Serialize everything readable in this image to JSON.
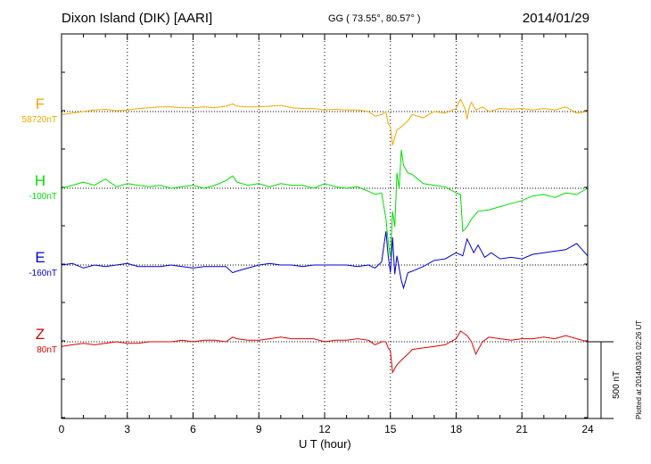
{
  "header": {
    "station": "Dixon Island (DIK)  [AARI]",
    "coords": "GG ( 73.55°,  80.57° )",
    "date": "2014/01/29"
  },
  "plotted_note": "Plotted at 2014/03/01 02:26 UT",
  "scale_bar_label": "500 nT",
  "chart_data": {
    "type": "line",
    "xlabel": "U T (hour)",
    "xlim": [
      0,
      24
    ],
    "xticks": [
      0,
      3,
      6,
      9,
      12,
      15,
      18,
      21,
      24
    ],
    "grid": true,
    "scale_bar_nT": 500,
    "series": [
      {
        "name": "F",
        "baseline_label": "58720nT",
        "color": "#f0a800",
        "x": [
          0,
          0.5,
          1,
          1.5,
          2,
          2.5,
          3,
          3.5,
          4,
          4.5,
          5,
          5.5,
          6,
          6.5,
          7,
          7.5,
          7.8,
          8,
          8.5,
          9,
          9.5,
          10,
          10.5,
          11,
          11.5,
          12,
          12.5,
          13,
          13.5,
          14,
          14.3,
          14.6,
          14.8,
          14.9,
          15.0,
          15.1,
          15.3,
          15.5,
          15.8,
          16,
          16.5,
          17,
          17.5,
          18,
          18.2,
          18.3,
          18.4,
          18.5,
          18.6,
          18.7,
          18.9,
          19.2,
          19.5,
          20,
          20.5,
          21,
          21.5,
          22,
          22.5,
          23,
          23.5,
          24
        ],
        "values": [
          -20,
          -10,
          0,
          10,
          15,
          5,
          10,
          20,
          25,
          30,
          30,
          25,
          25,
          30,
          25,
          35,
          50,
          35,
          30,
          30,
          35,
          40,
          25,
          20,
          20,
          10,
          15,
          10,
          10,
          0,
          -30,
          -20,
          0,
          -80,
          -100,
          -220,
          -120,
          -100,
          -60,
          -20,
          -40,
          0,
          -10,
          20,
          80,
          50,
          20,
          -50,
          30,
          60,
          10,
          30,
          0,
          20,
          15,
          20,
          10,
          20,
          10,
          30,
          -10,
          0
        ]
      },
      {
        "name": "H",
        "baseline_label": "-100nT",
        "color": "#00dd00",
        "x": [
          0,
          0.5,
          1,
          1.5,
          2,
          2.5,
          3,
          3.5,
          4,
          4.5,
          5,
          5.5,
          6,
          6.5,
          7,
          7.5,
          7.8,
          8,
          8.5,
          9,
          9.5,
          10,
          10.5,
          11,
          11.5,
          12,
          12.5,
          13,
          13.5,
          14,
          14.3,
          14.6,
          14.8,
          14.9,
          15.0,
          15.1,
          15.2,
          15.3,
          15.4,
          15.5,
          15.6,
          15.8,
          16,
          16.5,
          17,
          17.5,
          18,
          18.2,
          18.3,
          18.5,
          18.7,
          19,
          19.5,
          20,
          20.5,
          21,
          21.5,
          22,
          22.5,
          23,
          23.5,
          24
        ],
        "values": [
          0,
          20,
          40,
          20,
          60,
          10,
          30,
          20,
          10,
          20,
          0,
          10,
          20,
          0,
          20,
          50,
          80,
          40,
          20,
          30,
          10,
          30,
          20,
          20,
          0,
          30,
          10,
          0,
          10,
          -20,
          -40,
          -30,
          -200,
          -350,
          -450,
          -150,
          -250,
          100,
          0,
          250,
          150,
          100,
          90,
          30,
          20,
          10,
          -30,
          -40,
          -280,
          -250,
          -200,
          -150,
          -140,
          -120,
          -100,
          -80,
          -50,
          -40,
          -60,
          -30,
          -40,
          0
        ]
      },
      {
        "name": "E",
        "baseline_label": "-160nT",
        "color": "#0000cc",
        "x": [
          0,
          0.5,
          1,
          1.5,
          2,
          2.5,
          3,
          3.5,
          4,
          4.5,
          5,
          5.5,
          6,
          6.5,
          7,
          7.5,
          7.8,
          8,
          8.5,
          9,
          9.5,
          10,
          10.5,
          11,
          11.5,
          12,
          12.5,
          13,
          13.5,
          14,
          14.3,
          14.6,
          14.8,
          14.9,
          15.0,
          15.1,
          15.2,
          15.3,
          15.5,
          15.6,
          15.8,
          16,
          16.5,
          17,
          17.5,
          18,
          18.3,
          18.5,
          18.8,
          19,
          19.3,
          19.6,
          20,
          20.5,
          21,
          21.5,
          22,
          22.5,
          23,
          23.5,
          24
        ],
        "values": [
          0,
          10,
          -20,
          0,
          -10,
          0,
          10,
          -10,
          -10,
          -10,
          0,
          -10,
          -20,
          -10,
          -10,
          -10,
          -50,
          -40,
          -20,
          0,
          10,
          0,
          0,
          -10,
          0,
          0,
          0,
          0,
          -10,
          0,
          -20,
          20,
          220,
          60,
          -50,
          180,
          -60,
          60,
          -100,
          -150,
          -50,
          -40,
          -10,
          30,
          40,
          80,
          60,
          170,
          80,
          130,
          50,
          80,
          40,
          50,
          40,
          70,
          80,
          90,
          100,
          140,
          60
        ]
      },
      {
        "name": "Z",
        "baseline_label": "80nT",
        "color": "#dd0000",
        "x": [
          0,
          0.5,
          1,
          1.5,
          2,
          2.5,
          3,
          3.5,
          4,
          4.5,
          5,
          5.5,
          6,
          6.5,
          7,
          7.5,
          7.8,
          8,
          8.5,
          9,
          9.5,
          10,
          10.5,
          11,
          11.5,
          12,
          12.5,
          13,
          13.5,
          14,
          14.3,
          14.6,
          14.8,
          14.9,
          15.0,
          15.1,
          15.3,
          15.5,
          15.8,
          16,
          16.5,
          17,
          17.5,
          18,
          18.2,
          18.4,
          18.5,
          18.7,
          18.9,
          19.2,
          19.5,
          20,
          20.5,
          21,
          21.5,
          22,
          22.5,
          23,
          23.5,
          24
        ],
        "values": [
          -30,
          -20,
          -10,
          -20,
          -10,
          0,
          -10,
          -10,
          0,
          0,
          0,
          10,
          0,
          10,
          10,
          0,
          30,
          20,
          10,
          10,
          20,
          30,
          20,
          20,
          20,
          0,
          10,
          10,
          20,
          10,
          -20,
          0,
          0,
          -40,
          -60,
          -200,
          -150,
          -120,
          -80,
          -50,
          -40,
          -30,
          -20,
          20,
          70,
          50,
          40,
          0,
          -80,
          0,
          30,
          20,
          10,
          20,
          20,
          30,
          20,
          40,
          20,
          0
        ]
      }
    ]
  }
}
